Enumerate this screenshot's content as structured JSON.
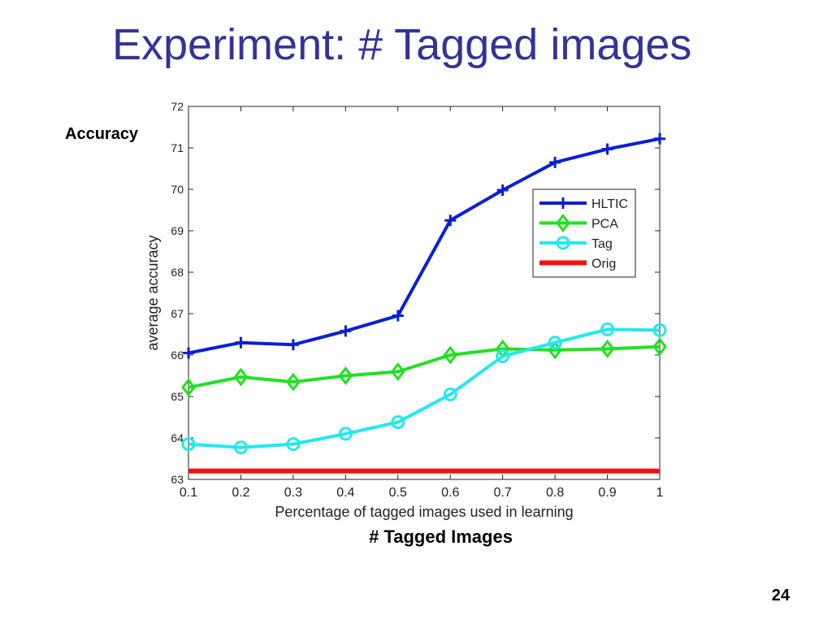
{
  "slide": {
    "title": "Experiment: # Tagged images",
    "side_label": "Accuracy",
    "bottom_label": "# Tagged Images",
    "page_number": "24"
  },
  "chart_data": {
    "type": "line",
    "title": "",
    "xlabel": "Percentage of tagged images used in learning",
    "ylabel": "average accuracy",
    "xlim": [
      0.1,
      1
    ],
    "ylim": [
      63,
      72
    ],
    "xticks": [
      "0.1",
      "0.2",
      "0.3",
      "0.4",
      "0.5",
      "0.6",
      "0.7",
      "0.8",
      "0.9",
      "1"
    ],
    "yticks": [
      "63",
      "64",
      "65",
      "66",
      "67",
      "68",
      "69",
      "70",
      "71",
      "72"
    ],
    "grid": false,
    "legend_position": "right, middle",
    "x": [
      0.1,
      0.2,
      0.3,
      0.4,
      0.5,
      0.6,
      0.7,
      0.8,
      0.9,
      1.0
    ],
    "series": [
      {
        "name": "HLTIC",
        "color": "#0a1fd6",
        "marker": "plus",
        "values": [
          66.05,
          66.3,
          66.25,
          66.58,
          66.95,
          69.25,
          69.98,
          70.65,
          70.97,
          71.22
        ]
      },
      {
        "name": "PCA",
        "color": "#22e022",
        "marker": "diamond",
        "values": [
          65.22,
          65.47,
          65.35,
          65.5,
          65.6,
          66.0,
          66.15,
          66.12,
          66.15,
          66.2
        ]
      },
      {
        "name": "Tag",
        "color": "#22e8f0",
        "marker": "circle",
        "values": [
          63.85,
          63.77,
          63.85,
          64.1,
          64.38,
          65.05,
          65.97,
          66.3,
          66.62,
          66.6
        ]
      },
      {
        "name": "Orig",
        "color": "#ee1111",
        "marker": "none",
        "values": [
          63.2,
          63.2,
          63.2,
          63.2,
          63.2,
          63.2,
          63.2,
          63.2,
          63.2,
          63.2
        ]
      }
    ]
  }
}
